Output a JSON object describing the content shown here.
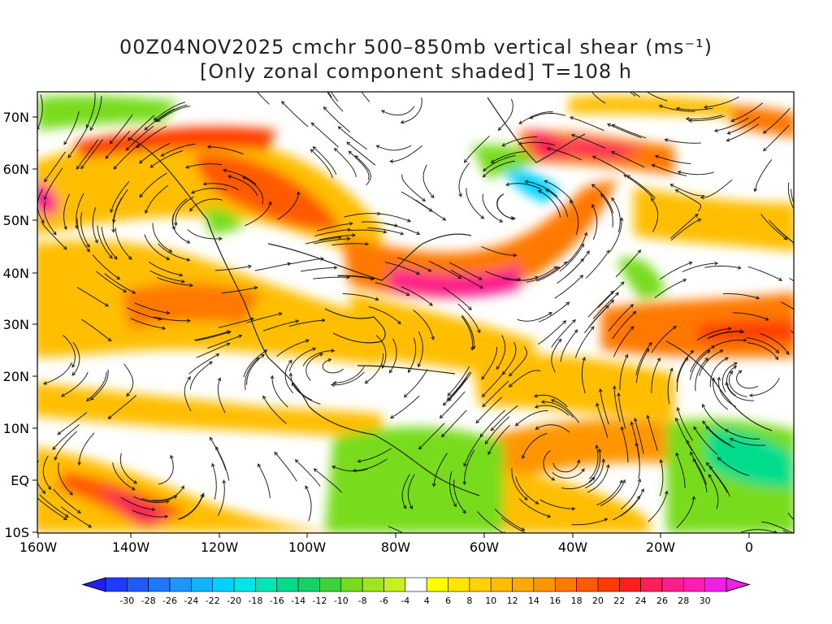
{
  "title_line1": "00Z04NOV2025 cmchr 500–850mb vertical shear (ms⁻¹)",
  "title_line2": "[Only zonal component shaded] T=108 h",
  "lat_labels": [
    "70N",
    "60N",
    "50N",
    "40N",
    "30N",
    "20N",
    "10N",
    "EQ",
    "10S"
  ],
  "lon_labels": [
    "160W",
    "140W",
    "120W",
    "100W",
    "80W",
    "60W",
    "40W",
    "20W",
    "0"
  ],
  "colorbar": {
    "labels": [
      "-30",
      "-28",
      "-26",
      "-24",
      "-22",
      "-20",
      "-18",
      "-16",
      "-14",
      "-12",
      "-10",
      "-8",
      "-6",
      "-4",
      "4",
      "6",
      "8",
      "10",
      "12",
      "14",
      "16",
      "18",
      "20",
      "22",
      "24",
      "26",
      "28",
      "30"
    ],
    "colors": [
      "#1e3cff",
      "#1e5aff",
      "#1e78ff",
      "#1e96ff",
      "#10b4ff",
      "#00d2ff",
      "#00e6e6",
      "#00e6b4",
      "#00dc8c",
      "#14d264",
      "#3cd23c",
      "#78dc1e",
      "#a0e61e",
      "#c8f01e",
      "#ffffff",
      "#ffff00",
      "#ffe600",
      "#ffd200",
      "#ffbe00",
      "#ffaa00",
      "#ff9600",
      "#ff7800",
      "#ff5a00",
      "#ff3c00",
      "#ff1e1e",
      "#ff1e5a",
      "#ff1e8c",
      "#ff1eb4",
      "#f01ee6"
    ]
  }
}
